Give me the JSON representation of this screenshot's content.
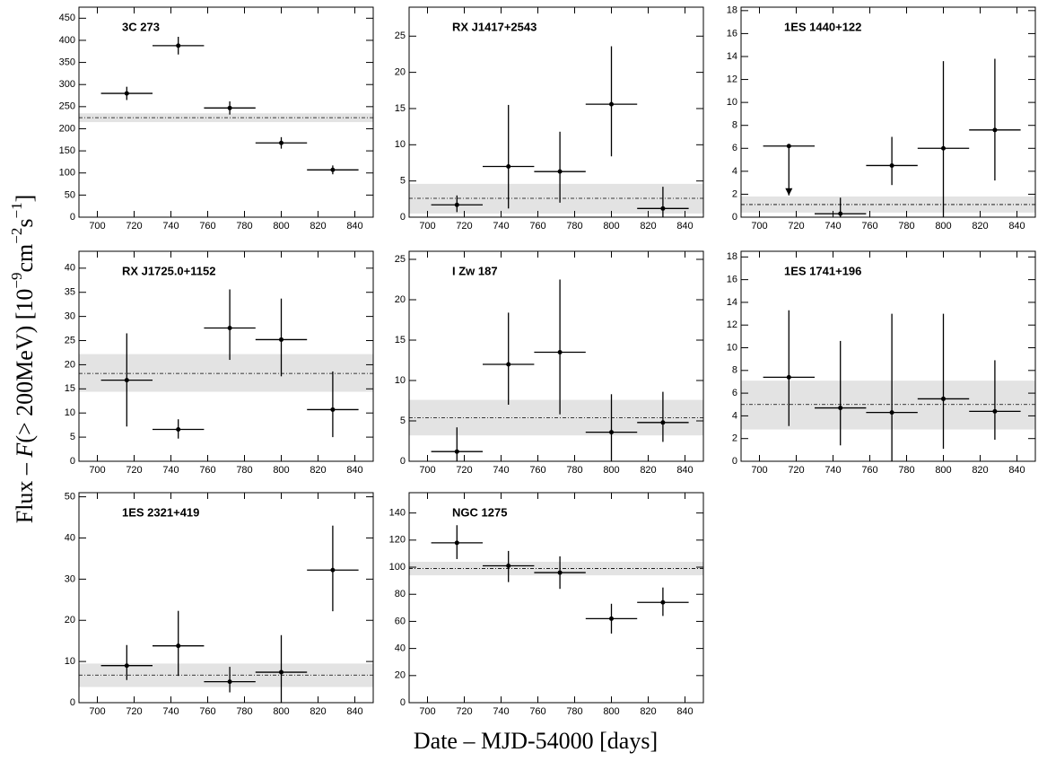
{
  "x_label": "Date – MJD-54000 [days]",
  "y_label": [
    "Flux – ",
    "F",
    "(> 200MeV) [10",
    "−9",
    "cm",
    "−2",
    "s",
    "−1",
    "]"
  ],
  "chart_data": [
    {
      "type": "scatter",
      "title": "3C 273",
      "x": [
        716,
        744,
        772,
        800,
        828
      ],
      "xerr": [
        14,
        14,
        14,
        14,
        14
      ],
      "values": [
        280,
        388,
        247,
        168,
        107
      ],
      "yerr_low": [
        15,
        20,
        15,
        13,
        10
      ],
      "yerr_high": [
        15,
        20,
        15,
        13,
        10
      ],
      "mean": 225,
      "band": [
        215,
        235
      ],
      "xlim": [
        690,
        850
      ],
      "xticks": [
        700,
        720,
        740,
        760,
        780,
        800,
        820,
        840
      ],
      "ylim": [
        0,
        475
      ],
      "yticks": [
        0,
        50,
        100,
        150,
        200,
        250,
        300,
        350,
        400,
        450
      ]
    },
    {
      "type": "scatter",
      "title": "RX J1417+2543",
      "x": [
        716,
        744,
        772,
        800,
        828
      ],
      "xerr": [
        14,
        14,
        14,
        14,
        14
      ],
      "values": [
        1.7,
        7.0,
        6.3,
        15.6,
        1.2
      ],
      "yerr_low": [
        1,
        5.8,
        4.3,
        7.2,
        1.2
      ],
      "yerr_high": [
        1.3,
        8.5,
        5.5,
        8,
        3
      ],
      "mean": 2.6,
      "band": [
        0.5,
        4.6
      ],
      "xlim": [
        690,
        850
      ],
      "xticks": [
        700,
        720,
        740,
        760,
        780,
        800,
        820,
        840
      ],
      "ylim": [
        0,
        29
      ],
      "yticks": [
        0,
        5,
        10,
        15,
        20,
        25
      ]
    },
    {
      "type": "scatter",
      "title": "1ES 1440+122",
      "x": [
        716,
        744,
        772,
        800,
        828
      ],
      "xerr": [
        14,
        14,
        14,
        14,
        14
      ],
      "values": [
        6.2,
        0.3,
        4.5,
        6.0,
        7.6
      ],
      "yerr_low": [
        4.3,
        0.3,
        1.7,
        6.0,
        4.4
      ],
      "yerr_high": [
        0,
        1.4,
        2.5,
        7.6,
        6.2
      ],
      "upper_limit": [
        true,
        false,
        false,
        false,
        false
      ],
      "mean": 1.1,
      "band": [
        0.4,
        1.8
      ],
      "xlim": [
        690,
        850
      ],
      "xticks": [
        700,
        720,
        740,
        760,
        780,
        800,
        820,
        840
      ],
      "ylim": [
        0,
        18.3
      ],
      "yticks": [
        0,
        2,
        4,
        6,
        8,
        10,
        12,
        14,
        16,
        18
      ]
    },
    {
      "type": "scatter",
      "title": "RX J1725.0+1152",
      "x": [
        716,
        744,
        772,
        800,
        828
      ],
      "xerr": [
        14,
        14,
        14,
        14,
        14
      ],
      "values": [
        16.8,
        6.6,
        27.6,
        25.2,
        10.7
      ],
      "yerr_low": [
        9.6,
        1.9,
        6.6,
        7.6,
        5.7
      ],
      "yerr_high": [
        9.7,
        2.1,
        8,
        8.5,
        7.9
      ],
      "mean": 18.2,
      "band": [
        14.4,
        22.2
      ],
      "xlim": [
        690,
        850
      ],
      "xticks": [
        700,
        720,
        740,
        760,
        780,
        800,
        820,
        840
      ],
      "ylim": [
        0,
        43.5
      ],
      "yticks": [
        0,
        5,
        10,
        15,
        20,
        25,
        30,
        35,
        40
      ]
    },
    {
      "type": "scatter",
      "title": "I Zw 187",
      "x": [
        716,
        744,
        772,
        800,
        828
      ],
      "xerr": [
        14,
        14,
        14,
        14,
        14
      ],
      "values": [
        1.2,
        12.0,
        13.5,
        3.6,
        4.8
      ],
      "yerr_low": [
        1.2,
        5,
        7.7,
        3.6,
        2.4
      ],
      "yerr_high": [
        3,
        6.4,
        9,
        4.7,
        3.8
      ],
      "mean": 5.4,
      "band": [
        3.2,
        7.6
      ],
      "xlim": [
        690,
        850
      ],
      "xticks": [
        700,
        720,
        740,
        760,
        780,
        800,
        820,
        840
      ],
      "ylim": [
        0,
        26
      ],
      "yticks": [
        0,
        5,
        10,
        15,
        20,
        25
      ]
    },
    {
      "type": "scatter",
      "title": "1ES 1741+196",
      "x": [
        716,
        744,
        772,
        800,
        828
      ],
      "xerr": [
        14,
        14,
        14,
        14,
        14
      ],
      "values": [
        7.4,
        4.7,
        4.3,
        5.5,
        4.4
      ],
      "yerr_low": [
        4.3,
        3.3,
        4.3,
        4.4,
        2.5
      ],
      "yerr_high": [
        5.9,
        5.9,
        8.7,
        7.5,
        4.5
      ],
      "mean": 5.0,
      "band": [
        2.8,
        7.1
      ],
      "xlim": [
        690,
        850
      ],
      "xticks": [
        700,
        720,
        740,
        760,
        780,
        800,
        820,
        840
      ],
      "ylim": [
        0,
        18.5
      ],
      "yticks": [
        0,
        2,
        4,
        6,
        8,
        10,
        12,
        14,
        16,
        18
      ]
    },
    {
      "type": "scatter",
      "title": "1ES 2321+419",
      "x": [
        716,
        744,
        772,
        800,
        828
      ],
      "xerr": [
        14,
        14,
        14,
        14,
        14
      ],
      "values": [
        9,
        13.8,
        5.1,
        7.4,
        32.2
      ],
      "yerr_low": [
        3.5,
        7.3,
        2.6,
        7.4,
        10
      ],
      "yerr_high": [
        5,
        8.5,
        3.6,
        9,
        10.8
      ],
      "mean": 6.7,
      "band": [
        3.8,
        9.5
      ],
      "xlim": [
        690,
        850
      ],
      "xticks": [
        700,
        720,
        740,
        760,
        780,
        800,
        820,
        840
      ],
      "ylim": [
        0,
        51
      ],
      "yticks": [
        0,
        10,
        20,
        30,
        40,
        50
      ]
    },
    {
      "type": "scatter",
      "title": "NGC 1275",
      "x": [
        716,
        744,
        772,
        800,
        828
      ],
      "xerr": [
        14,
        14,
        14,
        14,
        14
      ],
      "values": [
        118,
        101,
        96,
        62,
        74
      ],
      "yerr_low": [
        12,
        12,
        12,
        11,
        10
      ],
      "yerr_high": [
        13,
        11,
        12,
        11,
        11
      ],
      "mean": 99,
      "band": [
        94,
        104
      ],
      "xlim": [
        690,
        850
      ],
      "xticks": [
        700,
        720,
        740,
        760,
        780,
        800,
        820,
        840
      ],
      "ylim": [
        0,
        155
      ],
      "yticks": [
        0,
        20,
        40,
        60,
        80,
        100,
        120,
        140
      ]
    }
  ]
}
